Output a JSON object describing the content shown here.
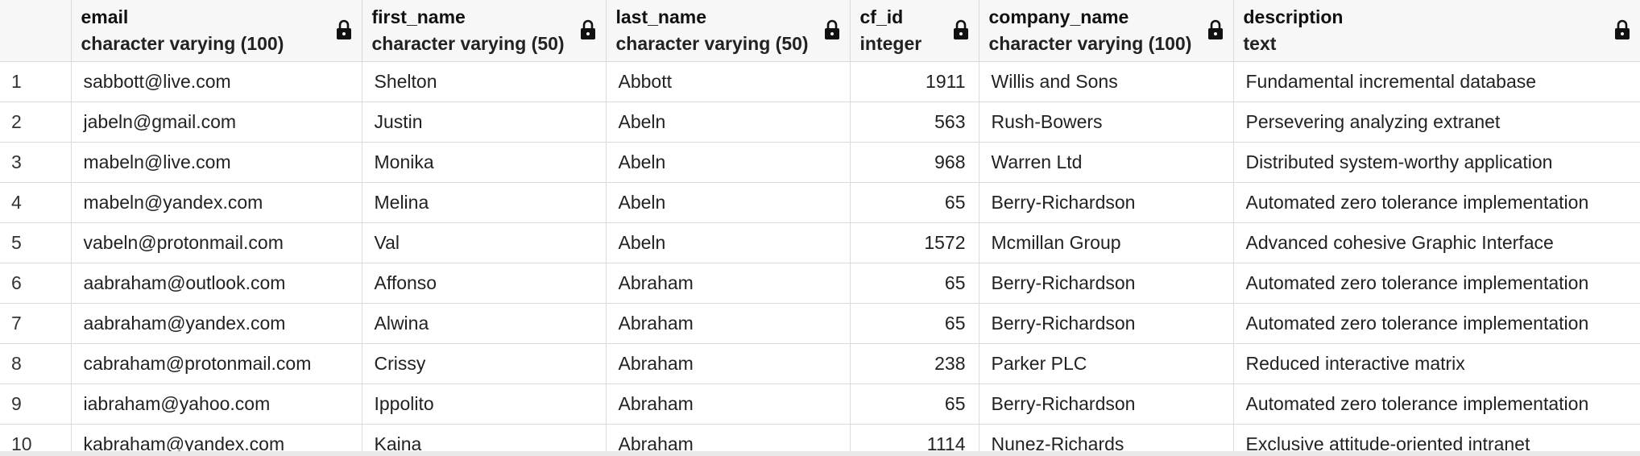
{
  "columns": [
    {
      "name": "email",
      "type": "character varying (100)"
    },
    {
      "name": "first_name",
      "type": "character varying (50)"
    },
    {
      "name": "last_name",
      "type": "character varying (50)"
    },
    {
      "name": "cf_id",
      "type": "integer"
    },
    {
      "name": "company_name",
      "type": "character varying (100)"
    },
    {
      "name": "description",
      "type": "text"
    }
  ],
  "lock_icon": "lock-icon",
  "rows": [
    {
      "num": "1",
      "email": "sabbott@live.com",
      "first_name": "Shelton",
      "last_name": "Abbott",
      "cf_id": "1911",
      "company_name": "Willis and Sons",
      "description": "Fundamental incremental database"
    },
    {
      "num": "2",
      "email": "jabeln@gmail.com",
      "first_name": "Justin",
      "last_name": "Abeln",
      "cf_id": "563",
      "company_name": "Rush-Bowers",
      "description": "Persevering analyzing extranet"
    },
    {
      "num": "3",
      "email": "mabeln@live.com",
      "first_name": "Monika",
      "last_name": "Abeln",
      "cf_id": "968",
      "company_name": "Warren Ltd",
      "description": "Distributed system-worthy application"
    },
    {
      "num": "4",
      "email": "mabeln@yandex.com",
      "first_name": "Melina",
      "last_name": "Abeln",
      "cf_id": "65",
      "company_name": "Berry-Richardson",
      "description": "Automated zero tolerance implementation"
    },
    {
      "num": "5",
      "email": "vabeln@protonmail.com",
      "first_name": "Val",
      "last_name": "Abeln",
      "cf_id": "1572",
      "company_name": "Mcmillan Group",
      "description": "Advanced cohesive Graphic Interface"
    },
    {
      "num": "6",
      "email": "aabraham@outlook.com",
      "first_name": "Affonso",
      "last_name": "Abraham",
      "cf_id": "65",
      "company_name": "Berry-Richardson",
      "description": "Automated zero tolerance implementation"
    },
    {
      "num": "7",
      "email": "aabraham@yandex.com",
      "first_name": "Alwina",
      "last_name": "Abraham",
      "cf_id": "65",
      "company_name": "Berry-Richardson",
      "description": "Automated zero tolerance implementation"
    },
    {
      "num": "8",
      "email": "cabraham@protonmail.com",
      "first_name": "Crissy",
      "last_name": "Abraham",
      "cf_id": "238",
      "company_name": "Parker PLC",
      "description": "Reduced interactive matrix"
    },
    {
      "num": "9",
      "email": "iabraham@yahoo.com",
      "first_name": "Ippolito",
      "last_name": "Abraham",
      "cf_id": "65",
      "company_name": "Berry-Richardson",
      "description": "Automated zero tolerance implementation"
    },
    {
      "num": "10",
      "email": "kabraham@yandex.com",
      "first_name": "Kaina",
      "last_name": "Abraham",
      "cf_id": "1114",
      "company_name": "Nunez-Richards",
      "description": "Exclusive attitude-oriented intranet"
    }
  ]
}
